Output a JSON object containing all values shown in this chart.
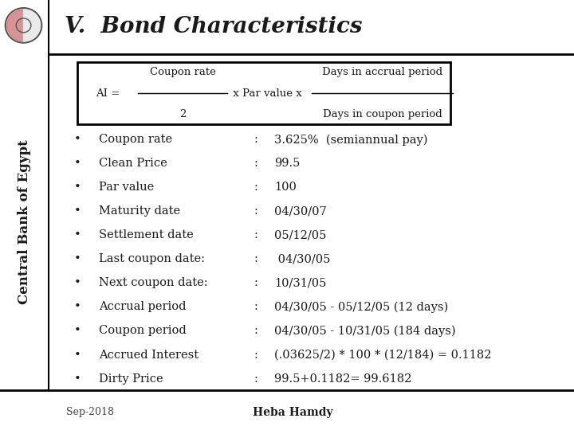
{
  "title": "V.  Bond Characteristics",
  "sidebar_text": "Central Bank of Egypt",
  "footer_left": "Sep-2018",
  "footer_center": "Heba Hamdy",
  "bullet_labels": [
    "Coupon rate",
    "Clean Price",
    "Par value",
    "Maturity date",
    "Settlement date",
    "Last coupon date:",
    "Next coupon date:",
    "Accrual period",
    "Coupon period",
    "Accrued Interest",
    "Dirty Price"
  ],
  "bullet_values": [
    "3.625%  (semiannual pay)",
    "99.5",
    "100",
    "04/30/07",
    "05/12/05",
    " 04/30/05",
    "10/31/05",
    "04/30/05 - 05/12/05 (12 days)",
    "04/30/05 - 10/31/05 (184 days)",
    "(.03625/2) * 100 * (12/184) = 0.1182",
    "99.5+0.1182= 99.6182"
  ],
  "colon": ":",
  "bg_color": "#ffffff",
  "text_color": "#1a1a1a",
  "title_fontsize": 20,
  "body_fontsize": 10.5,
  "sidebar_fontsize": 12,
  "footer_fontsize": 9,
  "formula_fontsize": 9.5
}
